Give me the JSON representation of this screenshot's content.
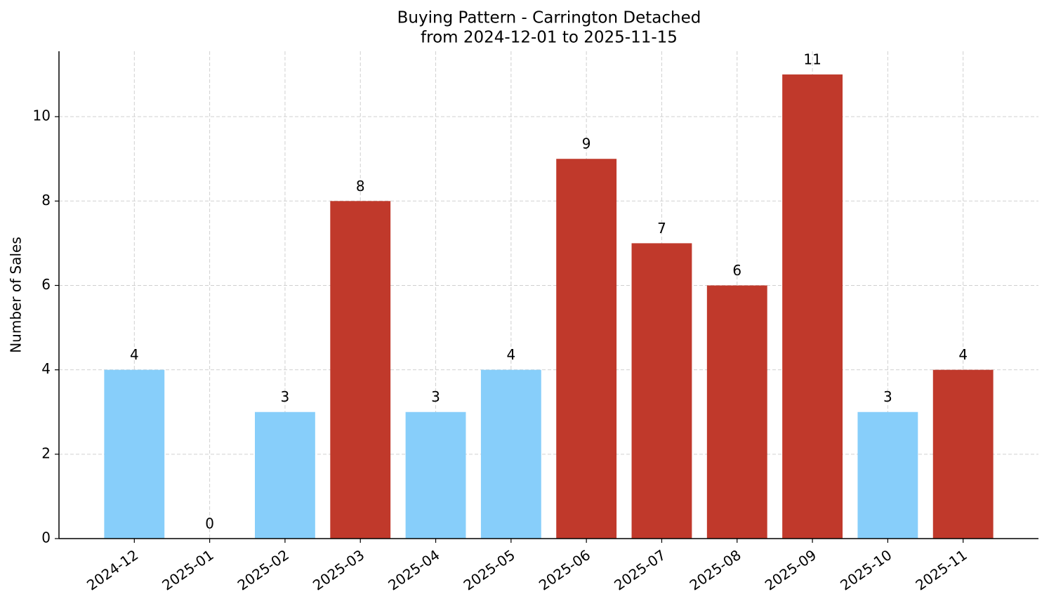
{
  "chart_data": {
    "type": "bar",
    "title": "Buying Pattern - Carrington Detached",
    "subtitle": "from 2024-12-01 to 2025-11-15",
    "y_label": "Number of Sales",
    "categories": [
      "2024-12",
      "2025-01",
      "2025-02",
      "2025-03",
      "2025-04",
      "2025-05",
      "2025-06",
      "2025-07",
      "2025-08",
      "2025-09",
      "2025-10",
      "2025-11"
    ],
    "values": [
      4,
      0,
      3,
      8,
      3,
      4,
      9,
      7,
      6,
      11,
      3,
      4
    ],
    "colors": [
      "#87cefa",
      "#87cefa",
      "#87cefa",
      "#c0392b",
      "#87cefa",
      "#87cefa",
      "#c0392b",
      "#c0392b",
      "#c0392b",
      "#c0392b",
      "#87cefa",
      "#c0392b"
    ],
    "ylim": [
      0,
      11.55
    ],
    "yticks": [
      0,
      2,
      4,
      6,
      8,
      10
    ],
    "grid": true
  }
}
